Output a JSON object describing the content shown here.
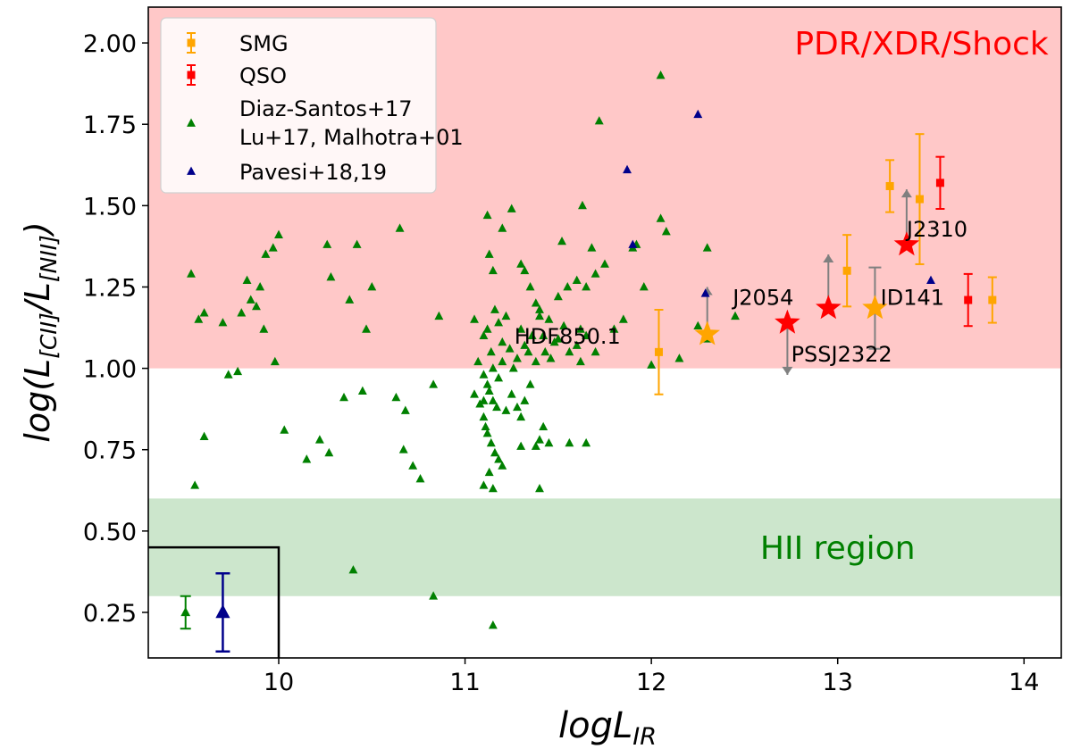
{
  "chart_data": {
    "type": "scatter",
    "xlabel_main": "logL",
    "xlabel_sub": "IR",
    "ylabel": {
      "p1": "log(L",
      "s1": "[CII]",
      "p2": "/L",
      "s2": "[NII]",
      "p3": ")"
    },
    "xlim": [
      9.3,
      14.2
    ],
    "ylim": [
      0.11,
      2.11
    ],
    "xticks": [
      10,
      11,
      12,
      13,
      14
    ],
    "yticks": [
      0.25,
      0.5,
      0.75,
      1.0,
      1.25,
      1.5,
      1.75,
      2.0
    ],
    "ytick_labels": [
      "0.25",
      "0.50",
      "0.75",
      "1.00",
      "1.25",
      "1.50",
      "1.75",
      "2.00"
    ],
    "regions": [
      {
        "name": "PDR/XDR/Shock",
        "y0": 1.0,
        "y1": 2.11,
        "color": "#ffc8c8",
        "label_color": "#ff0000",
        "label_x": 13.45,
        "label_y": 2.0
      },
      {
        "name": "HII region",
        "y0": 0.3,
        "y1": 0.6,
        "color": "#cce6cc",
        "label_color": "#008000",
        "label_x": 13.0,
        "label_y": 0.45
      }
    ],
    "legend": {
      "location": "upper-left",
      "entries": [
        {
          "label": "SMG",
          "marker": "square-errorbar",
          "color": "#ffa500"
        },
        {
          "label": "QSO",
          "marker": "square-errorbar",
          "color": "#ff0000"
        },
        {
          "label": "Diaz-Santos+17",
          "label2": "Lu+17, Malhotra+01",
          "marker": "triangle",
          "color": "#008000"
        },
        {
          "label": "Pavesi+18,19",
          "marker": "triangle",
          "color": "#00008b"
        }
      ]
    },
    "series": [
      {
        "name": "Diaz-Santos+17 / Lu+17, Malhotra+01",
        "marker": "triangle",
        "color": "#008000",
        "points": [
          [
            9.53,
            1.29
          ],
          [
            9.57,
            1.15
          ],
          [
            9.6,
            1.17
          ],
          [
            9.7,
            1.14
          ],
          [
            9.8,
            1.17
          ],
          [
            9.88,
            1.19
          ],
          [
            9.85,
            1.21
          ],
          [
            9.9,
            1.25
          ],
          [
            9.93,
            1.35
          ],
          [
            9.97,
            1.37
          ],
          [
            9.92,
            1.12
          ],
          [
            9.83,
            1.27
          ],
          [
            9.55,
            0.64
          ],
          [
            9.6,
            0.79
          ],
          [
            9.78,
            0.99
          ],
          [
            9.73,
            0.98
          ],
          [
            10.0,
            1.41
          ],
          [
            10.03,
            0.81
          ],
          [
            10.15,
            0.72
          ],
          [
            10.22,
            0.78
          ],
          [
            10.27,
            0.74
          ],
          [
            10.26,
            1.38
          ],
          [
            10.28,
            1.28
          ],
          [
            10.35,
            0.91
          ],
          [
            10.38,
            1.21
          ],
          [
            10.42,
            1.38
          ],
          [
            10.45,
            0.93
          ],
          [
            10.47,
            1.12
          ],
          [
            10.5,
            1.25
          ],
          [
            10.63,
            0.91
          ],
          [
            10.65,
            1.43
          ],
          [
            10.67,
            0.75
          ],
          [
            10.68,
            0.87
          ],
          [
            10.72,
            0.7
          ],
          [
            10.76,
            0.66
          ],
          [
            10.83,
            0.95
          ],
          [
            10.86,
            1.16
          ],
          [
            10.4,
            0.38
          ],
          [
            10.83,
            0.3
          ],
          [
            9.98,
            1.02
          ],
          [
            11.1,
            0.64
          ],
          [
            11.15,
            0.21
          ],
          [
            11.12,
            1.47
          ],
          [
            11.13,
            1.35
          ],
          [
            11.15,
            1.3
          ],
          [
            11.2,
            1.43
          ],
          [
            11.25,
            1.49
          ],
          [
            11.3,
            1.32
          ],
          [
            11.32,
            1.3
          ],
          [
            11.35,
            1.25
          ],
          [
            11.38,
            1.2
          ],
          [
            11.4,
            1.18
          ],
          [
            11.42,
            1.1
          ],
          [
            11.45,
            1.15
          ],
          [
            11.48,
            1.08
          ],
          [
            11.5,
            1.22
          ],
          [
            11.52,
            1.39
          ],
          [
            11.55,
            1.25
          ],
          [
            11.6,
            1.27
          ],
          [
            11.62,
            1.12
          ],
          [
            11.65,
            1.25
          ],
          [
            11.7,
            1.29
          ],
          [
            11.75,
            1.32
          ],
          [
            11.68,
            1.37
          ],
          [
            11.72,
            1.76
          ],
          [
            11.63,
            1.5
          ],
          [
            11.65,
            1.1
          ],
          [
            11.7,
            1.05
          ],
          [
            11.07,
            1.02
          ],
          [
            11.1,
            0.98
          ],
          [
            11.12,
            0.95
          ],
          [
            11.13,
            0.93
          ],
          [
            11.15,
            0.9
          ],
          [
            11.17,
            0.88
          ],
          [
            11.08,
            0.89
          ],
          [
            11.1,
            0.85
          ],
          [
            11.11,
            0.82
          ],
          [
            11.12,
            0.8
          ],
          [
            11.14,
            0.77
          ],
          [
            11.16,
            0.74
          ],
          [
            11.18,
            0.72
          ],
          [
            11.2,
            0.7
          ],
          [
            11.15,
            0.63
          ],
          [
            11.13,
            0.68
          ],
          [
            11.22,
            0.87
          ],
          [
            11.25,
            0.92
          ],
          [
            11.28,
            0.88
          ],
          [
            11.3,
            0.85
          ],
          [
            11.32,
            0.9
          ],
          [
            11.35,
            0.95
          ],
          [
            11.38,
            0.76
          ],
          [
            11.4,
            0.78
          ],
          [
            11.42,
            0.82
          ],
          [
            11.45,
            0.77
          ],
          [
            11.4,
            0.63
          ],
          [
            11.56,
            0.77
          ],
          [
            11.65,
            0.77
          ],
          [
            11.3,
            0.76
          ],
          [
            11.05,
            1.15
          ],
          [
            11.1,
            1.1
          ],
          [
            11.12,
            1.12
          ],
          [
            11.14,
            1.05
          ],
          [
            11.16,
            1.18
          ],
          [
            11.18,
            1.14
          ],
          [
            11.2,
            1.08
          ],
          [
            11.22,
            1.16
          ],
          [
            11.24,
            1.06
          ],
          [
            11.26,
            1.0
          ],
          [
            11.28,
            1.03
          ],
          [
            11.3,
            1.12
          ],
          [
            11.32,
            1.07
          ],
          [
            11.34,
            1.05
          ],
          [
            11.36,
            1.1
          ],
          [
            11.38,
            1.02
          ],
          [
            11.4,
            1.16
          ],
          [
            11.43,
            1.05
          ],
          [
            11.46,
            1.03
          ],
          [
            11.5,
            1.09
          ],
          [
            11.53,
            1.13
          ],
          [
            11.56,
            1.05
          ],
          [
            11.6,
            1.07
          ],
          [
            11.62,
            1.02
          ],
          [
            11.15,
            1.0
          ],
          [
            11.18,
            0.97
          ],
          [
            11.2,
            1.02
          ],
          [
            11.1,
            0.9
          ],
          [
            11.05,
            0.92
          ],
          [
            11.8,
            1.12
          ],
          [
            11.85,
            1.15
          ],
          [
            11.9,
            1.37
          ],
          [
            11.92,
            1.38
          ],
          [
            11.96,
            1.25
          ],
          [
            12.0,
            1.01
          ],
          [
            12.05,
            1.46
          ],
          [
            12.08,
            1.42
          ],
          [
            12.15,
            1.03
          ],
          [
            12.25,
            1.13
          ],
          [
            12.3,
            1.37
          ],
          [
            12.45,
            1.16
          ],
          [
            12.05,
            1.9
          ],
          [
            12.3,
            1.09
          ]
        ]
      },
      {
        "name": "Pavesi+18,19",
        "marker": "triangle",
        "color": "#00008b",
        "points": [
          [
            12.25,
            1.78
          ],
          [
            11.87,
            1.61
          ],
          [
            11.9,
            1.38
          ],
          [
            12.29,
            1.23
          ],
          [
            13.5,
            1.27
          ]
        ]
      },
      {
        "name": "SMG",
        "marker": "square",
        "color": "#ffa500",
        "points": [
          [
            12.04,
            1.05,
            0.13
          ],
          [
            13.05,
            1.3,
            0.11
          ],
          [
            13.28,
            1.56,
            0.08
          ],
          [
            13.44,
            1.52,
            0.2
          ],
          [
            13.83,
            1.21,
            0.07
          ]
        ]
      },
      {
        "name": "QSO",
        "marker": "square",
        "color": "#ff0000",
        "points": [
          [
            13.55,
            1.57,
            0.08
          ],
          [
            13.7,
            1.21,
            0.08
          ]
        ]
      }
    ],
    "stars": [
      {
        "name": "HDF850.1",
        "x": 12.3,
        "y": 1.105,
        "color": "#ffa500",
        "arrow": "up",
        "arrow_to": 1.25,
        "label_x": 11.55,
        "label_y": 1.1
      },
      {
        "name": "J2054",
        "x": 12.73,
        "y": 1.14,
        "color": "#ff0000",
        "arrow": "down",
        "arrow_to": 0.98,
        "label_x": 12.6,
        "label_y": 1.22
      },
      {
        "name": "PSSJ2322",
        "x": 12.95,
        "y": 1.185,
        "color": "#ff0000",
        "arrow": "up",
        "arrow_to": 1.35,
        "label_x": 12.75,
        "label_y": 1.045
      },
      {
        "name": "ID141",
        "x": 13.2,
        "y": 1.185,
        "color": "#ffa500",
        "arrow": "both",
        "arrow_to": 1.31,
        "label_x": 13.23,
        "label_y": 1.22
      },
      {
        "name": "J2310",
        "x": 13.37,
        "y": 1.38,
        "color": "#ff0000",
        "arrow": "up",
        "arrow_to": 1.55,
        "label_x": 13.37,
        "label_y": 1.43
      }
    ],
    "summary_points": [
      {
        "x": 9.5,
        "y": 0.25,
        "err": 0.05,
        "color": "#008000",
        "size": "small"
      },
      {
        "x": 9.7,
        "y": 0.25,
        "err": 0.12,
        "color": "#00008b",
        "size": "large"
      }
    ],
    "inset_box": {
      "x1": 10.0,
      "y1": 0.45
    }
  }
}
